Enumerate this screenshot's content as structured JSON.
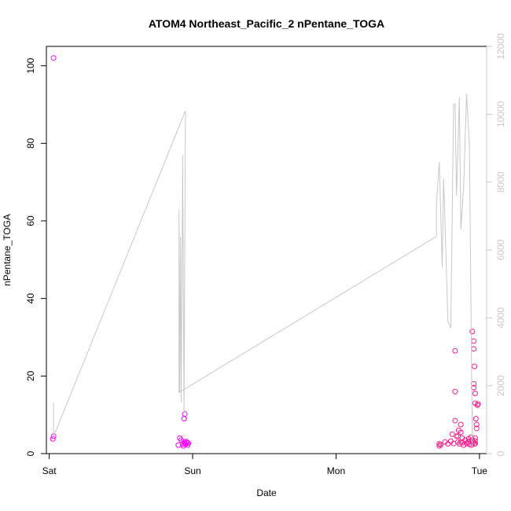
{
  "chart_data": {
    "type": "scatter",
    "title": "ATOM4 Northeast_Pacific_2 nPentane_TOGA",
    "xlabel": "Date",
    "ylabel": "nPentane_TOGA",
    "x_ticks": [
      "Sat",
      "Sun",
      "Mon",
      "Tue"
    ],
    "xlim": [
      -0.02,
      3.05
    ],
    "ylim": [
      0,
      105
    ],
    "y_ticks": [
      0,
      20,
      40,
      60,
      80,
      100
    ],
    "y2lim": [
      0,
      12000
    ],
    "y2_ticks": [
      0,
      2000,
      4000,
      6000,
      8000,
      10000,
      12000
    ],
    "grid": false,
    "colors": {
      "magenta": "#ff00ff",
      "pink": "#ff1a8c",
      "line": "#c8c8c8"
    },
    "series": [
      {
        "style": "points",
        "color": "#ff00ff",
        "x": [
          0.03,
          0.03,
          0.025,
          0.9,
          0.91,
          0.92,
          0.93,
          0.935,
          0.94,
          0.945,
          0.95,
          0.955,
          0.96,
          0.965,
          0.97,
          0.94,
          0.945
        ],
        "y": [
          102,
          4.5,
          3.8,
          2.2,
          4.0,
          3.5,
          2.5,
          2.0,
          3.0,
          2.6,
          2.4,
          3.1,
          2.8,
          2.2,
          2.7,
          9.0,
          10.2
        ]
      },
      {
        "style": "points",
        "color": "#ff1a8c",
        "x": [
          2.72,
          2.72,
          2.73,
          2.76,
          2.78,
          2.8,
          2.81,
          2.82,
          2.83,
          2.84,
          2.85,
          2.855,
          2.86,
          2.87,
          2.87,
          2.88,
          2.88,
          2.89,
          2.9,
          2.91,
          2.92,
          2.925,
          2.93,
          2.94,
          2.945,
          2.95,
          2.955,
          2.96,
          2.965,
          2.97,
          2.97,
          2.975,
          2.98,
          2.98,
          2.985,
          2.99,
          2.83,
          2.83,
          2.85,
          2.87,
          2.95,
          2.96,
          2.96,
          2.96,
          2.965,
          2.97,
          2.97,
          2.97
        ],
        "y": [
          2.5,
          2.0,
          2.3,
          3.0,
          2.5,
          3.2,
          5.0,
          2.6,
          8.5,
          4.5,
          3.0,
          6.0,
          2.5,
          5.5,
          7.5,
          4.0,
          2.8,
          2.2,
          3.5,
          2.6,
          3.0,
          3.8,
          2.4,
          4.2,
          2.2,
          3.5,
          2.8,
          18.0,
          22.5,
          15.5,
          13.0,
          9.0,
          7.5,
          6.5,
          12.5,
          12.8,
          26.5,
          16.0,
          4.5,
          3.0,
          31.5,
          29.0,
          27.0,
          17.0,
          2.5,
          4.0,
          3.3,
          2.6
        ]
      },
      {
        "style": "line",
        "color": "#c8c8c8",
        "axis": "right",
        "x": [
          0.03,
          0.03,
          0.95,
          0.94,
          0.93,
          0.93,
          0.92,
          0.915,
          0.91,
          0.905,
          0.905,
          2.7,
          2.7,
          2.72,
          2.74,
          2.75,
          2.76,
          2.78,
          2.8,
          2.82,
          2.83,
          2.84,
          2.86,
          2.87,
          2.89,
          2.91,
          2.93,
          2.95,
          2.95
        ],
        "y": [
          1500,
          500,
          10100,
          1200,
          8800,
          8200,
          1500,
          6400,
          1800,
          7200,
          1800,
          6400,
          7400,
          8600,
          5500,
          8100,
          6800,
          3900,
          3700,
          10300,
          10300,
          7600,
          10500,
          6600,
          7900,
          10600,
          9100,
          200,
          1300
        ]
      }
    ]
  }
}
